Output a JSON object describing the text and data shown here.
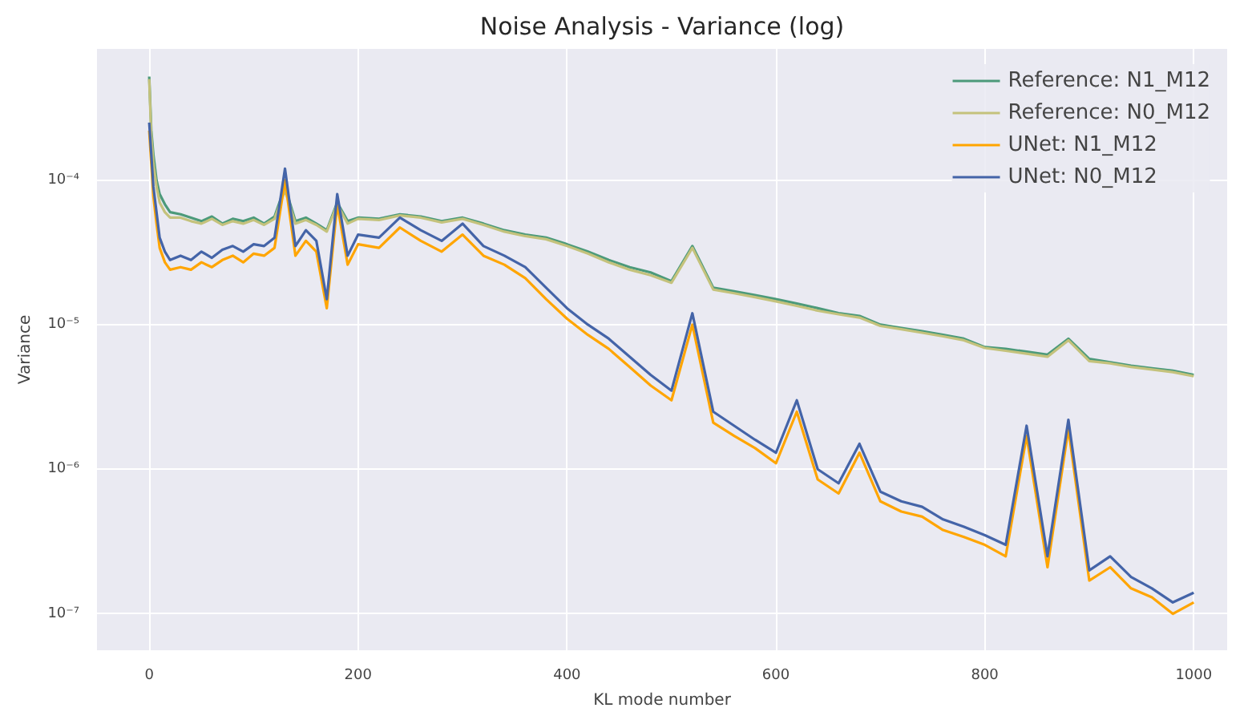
{
  "chart_data": {
    "type": "line",
    "title": "Noise Analysis - Variance (log)",
    "xlabel": "KL mode number",
    "ylabel": "Variance",
    "log": "y",
    "grid": true,
    "legend": "top right",
    "line_style": "solid",
    "marker": "none",
    "x": [
      0,
      2,
      4,
      7,
      10,
      15,
      20,
      30,
      40,
      50,
      60,
      70,
      80,
      90,
      100,
      110,
      120,
      130,
      140,
      150,
      160,
      170,
      180,
      190,
      200,
      220,
      240,
      260,
      280,
      300,
      320,
      340,
      360,
      380,
      400,
      420,
      440,
      460,
      480,
      500,
      520,
      540,
      560,
      580,
      600,
      620,
      640,
      660,
      680,
      700,
      720,
      740,
      760,
      780,
      800,
      820,
      840,
      860,
      880,
      900,
      920,
      940,
      960,
      980,
      1000
    ],
    "xlim": [
      -50,
      1032
    ],
    "xticks": [
      0,
      200,
      400,
      600,
      800,
      1000
    ],
    "ylim": [
      5.6e-08,
      0.000808
    ],
    "yticks": [
      {
        "value": 0.0001,
        "label": "10⁻⁴"
      },
      {
        "value": 1e-05,
        "label": "10⁻⁵"
      },
      {
        "value": 1e-06,
        "label": "10⁻⁶"
      },
      {
        "value": 1e-07,
        "label": "10⁻⁷"
      }
    ],
    "series": [
      {
        "name": "Reference: N1_M12",
        "color": "#4c9a7a",
        "values": [
          0.00052,
          0.00022,
          0.00015,
          0.0001,
          8e-05,
          6.8e-05,
          6e-05,
          5.8e-05,
          5.5e-05,
          5.2e-05,
          5.6e-05,
          5e-05,
          5.4e-05,
          5.2e-05,
          5.5e-05,
          5e-05,
          5.6e-05,
          9e-05,
          5.2e-05,
          5.5e-05,
          5e-05,
          4.5e-05,
          7e-05,
          5.2e-05,
          5.5e-05,
          5.4e-05,
          5.8e-05,
          5.6e-05,
          5.2e-05,
          5.5e-05,
          5e-05,
          4.5e-05,
          4.2e-05,
          4e-05,
          3.6e-05,
          3.2e-05,
          2.8e-05,
          2.5e-05,
          2.3e-05,
          2e-05,
          3.5e-05,
          1.8e-05,
          1.7e-05,
          1.6e-05,
          1.5e-05,
          1.4e-05,
          1.3e-05,
          1.2e-05,
          1.15e-05,
          1e-05,
          9.5e-06,
          9e-06,
          8.5e-06,
          8e-06,
          7e-06,
          6.8e-06,
          6.5e-06,
          6.2e-06,
          8e-06,
          5.8e-06,
          5.5e-06,
          5.2e-06,
          5e-06,
          4.8e-06,
          4.5e-06
        ]
      },
      {
        "name": "Reference: N0_M12",
        "color": "#c4c27c",
        "values": [
          0.0005,
          0.0002,
          0.00013,
          9e-05,
          7e-05,
          6e-05,
          5.5e-05,
          5.5e-05,
          5.2e-05,
          5e-05,
          5.4e-05,
          4.9e-05,
          5.2e-05,
          5e-05,
          5.3e-05,
          4.9e-05,
          5.4e-05,
          8.5e-05,
          5e-05,
          5.3e-05,
          4.9e-05,
          4.4e-05,
          6.8e-05,
          5e-05,
          5.4e-05,
          5.3e-05,
          5.7e-05,
          5.5e-05,
          5.1e-05,
          5.4e-05,
          4.9e-05,
          4.4e-05,
          4.1e-05,
          3.9e-05,
          3.5e-05,
          3.1e-05,
          2.7e-05,
          2.4e-05,
          2.2e-05,
          1.95e-05,
          3.4e-05,
          1.75e-05,
          1.65e-05,
          1.55e-05,
          1.45e-05,
          1.35e-05,
          1.25e-05,
          1.18e-05,
          1.12e-05,
          9.8e-06,
          9.3e-06,
          8.8e-06,
          8.3e-06,
          7.8e-06,
          6.9e-06,
          6.6e-06,
          6.3e-06,
          6e-06,
          7.8e-06,
          5.6e-06,
          5.4e-06,
          5.1e-06,
          4.9e-06,
          4.7e-06,
          4.4e-06
        ]
      },
      {
        "name": "UNet: N1_M12",
        "color": "#ffa500",
        "values": [
          0.00022,
          0.00013,
          7.7e-05,
          5e-05,
          3.4e-05,
          2.7e-05,
          2.4e-05,
          2.5e-05,
          2.4e-05,
          2.7e-05,
          2.5e-05,
          2.8e-05,
          3e-05,
          2.7e-05,
          3.1e-05,
          3e-05,
          3.4e-05,
          0.0001,
          3e-05,
          3.8e-05,
          3.2e-05,
          1.3e-05,
          6.8e-05,
          2.6e-05,
          3.6e-05,
          3.4e-05,
          4.7e-05,
          3.8e-05,
          3.2e-05,
          4.2e-05,
          3e-05,
          2.6e-05,
          2.1e-05,
          1.5e-05,
          1.1e-05,
          8.5e-06,
          6.8e-06,
          5.1e-06,
          3.8e-06,
          3e-06,
          1e-05,
          2.1e-06,
          1.7e-06,
          1.4e-06,
          1.1e-06,
          2.5e-06,
          8.5e-07,
          6.8e-07,
          1.3e-06,
          6e-07,
          5.1e-07,
          4.7e-07,
          3.8e-07,
          3.4e-07,
          3e-07,
          2.5e-07,
          1.7e-06,
          2.1e-07,
          1.9e-06,
          1.7e-07,
          2.1e-07,
          1.5e-07,
          1.3e-07,
          1e-07,
          1.2e-07
        ]
      },
      {
        "name": "UNet: N0_M12",
        "color": "#4464a8",
        "values": [
          0.00025,
          0.00015,
          9e-05,
          6e-05,
          4e-05,
          3.2e-05,
          2.8e-05,
          3e-05,
          2.8e-05,
          3.2e-05,
          2.9e-05,
          3.3e-05,
          3.5e-05,
          3.2e-05,
          3.6e-05,
          3.5e-05,
          4e-05,
          0.00012,
          3.5e-05,
          4.5e-05,
          3.8e-05,
          1.5e-05,
          8e-05,
          3e-05,
          4.2e-05,
          4e-05,
          5.5e-05,
          4.5e-05,
          3.8e-05,
          5e-05,
          3.5e-05,
          3e-05,
          2.5e-05,
          1.8e-05,
          1.3e-05,
          1e-05,
          8e-06,
          6e-06,
          4.5e-06,
          3.5e-06,
          1.2e-05,
          2.5e-06,
          2e-06,
          1.6e-06,
          1.3e-06,
          3e-06,
          1e-06,
          8e-07,
          1.5e-06,
          7e-07,
          6e-07,
          5.5e-07,
          4.5e-07,
          4e-07,
          3.5e-07,
          3e-07,
          2e-06,
          2.5e-07,
          2.2e-06,
          2e-07,
          2.5e-07,
          1.8e-07,
          1.5e-07,
          1.2e-07,
          1.4e-07
        ]
      }
    ]
  }
}
